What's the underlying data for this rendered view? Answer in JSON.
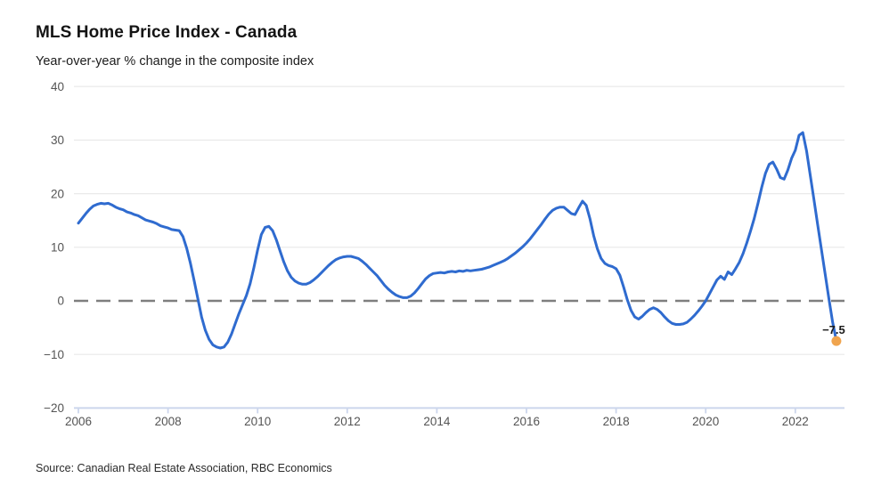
{
  "header": {
    "title": "MLS Home Price Index - Canada",
    "subtitle": "Year-over-year % change in the composite index"
  },
  "footer": {
    "source": "Source: Canadian Real Estate Association, RBC Economics"
  },
  "chart_data": {
    "type": "line",
    "title": "MLS Home Price Index - Canada",
    "subtitle": "Year-over-year % change in the composite index",
    "x_start": "2006-01",
    "x_end": "2022-12",
    "frequency": "monthly",
    "x_tick_labels": [
      "2006",
      "2008",
      "2010",
      "2012",
      "2014",
      "2016",
      "2018",
      "2020",
      "2022"
    ],
    "y_ticks": [
      40,
      30,
      20,
      10,
      0,
      -10,
      -20
    ],
    "y_tick_labels": [
      "40",
      "30",
      "20",
      "10",
      "0",
      "−10",
      "−20"
    ],
    "ylim": [
      -20,
      40
    ],
    "grid": "horizontal-light",
    "legend": "none",
    "zero_line": {
      "style": "dashed",
      "color": "#7f7f7f"
    },
    "grid_color": "#e9e9e9",
    "axis_color": "#ccd6ec",
    "label_color": "#545454",
    "series": [
      {
        "name": "Composite index y/y % change",
        "color": "#2f6bcf",
        "values": [
          14.5,
          15.4,
          16.3,
          17.1,
          17.7,
          18.0,
          18.2,
          18.1,
          18.2,
          17.9,
          17.5,
          17.2,
          17.0,
          16.6,
          16.4,
          16.1,
          15.9,
          15.5,
          15.1,
          14.9,
          14.7,
          14.4,
          14.0,
          13.8,
          13.6,
          13.3,
          13.2,
          13.1,
          12.0,
          9.8,
          7.0,
          3.8,
          0.4,
          -3.0,
          -5.5,
          -7.2,
          -8.2,
          -8.6,
          -8.8,
          -8.6,
          -7.7,
          -6.2,
          -4.3,
          -2.4,
          -0.7,
          1.0,
          3.2,
          6.2,
          9.5,
          12.4,
          13.7,
          13.9,
          13.1,
          11.4,
          9.3,
          7.3,
          5.6,
          4.4,
          3.7,
          3.3,
          3.1,
          3.1,
          3.4,
          3.9,
          4.5,
          5.2,
          5.9,
          6.6,
          7.2,
          7.7,
          8.0,
          8.2,
          8.3,
          8.3,
          8.1,
          7.9,
          7.4,
          6.8,
          6.1,
          5.4,
          4.7,
          3.8,
          2.9,
          2.2,
          1.6,
          1.1,
          0.8,
          0.6,
          0.6,
          0.9,
          1.5,
          2.3,
          3.2,
          4.1,
          4.7,
          5.1,
          5.2,
          5.3,
          5.2,
          5.4,
          5.5,
          5.4,
          5.6,
          5.5,
          5.7,
          5.6,
          5.7,
          5.8,
          5.9,
          6.1,
          6.3,
          6.6,
          6.9,
          7.2,
          7.5,
          7.9,
          8.4,
          8.9,
          9.5,
          10.1,
          10.8,
          11.6,
          12.5,
          13.4,
          14.3,
          15.3,
          16.2,
          16.9,
          17.3,
          17.5,
          17.5,
          16.9,
          16.3,
          16.1,
          17.4,
          18.6,
          17.8,
          15.3,
          12.2,
          9.7,
          7.9,
          7.0,
          6.6,
          6.4,
          6.0,
          4.8,
          2.6,
          0.2,
          -1.8,
          -3.0,
          -3.4,
          -2.9,
          -2.2,
          -1.6,
          -1.3,
          -1.6,
          -2.2,
          -3.0,
          -3.7,
          -4.2,
          -4.4,
          -4.4,
          -4.3,
          -4.0,
          -3.4,
          -2.7,
          -1.9,
          -1.0,
          0.0,
          1.3,
          2.6,
          3.9,
          4.6,
          4.0,
          5.4,
          4.9,
          6.0,
          7.2,
          8.8,
          10.8,
          13.0,
          15.4,
          18.2,
          21.2,
          23.8,
          25.5,
          25.9,
          24.6,
          23.0,
          22.7,
          24.4,
          26.6,
          28.1,
          30.9,
          31.4,
          28.0,
          23.4,
          18.8,
          14.2,
          9.6,
          5.0,
          0.4,
          -4.0,
          -7.5
        ]
      }
    ],
    "end_point": {
      "label": "−7.5",
      "value": -7.5,
      "marker_color": "#f0a44e",
      "label_color": "#1a1a1a"
    }
  }
}
